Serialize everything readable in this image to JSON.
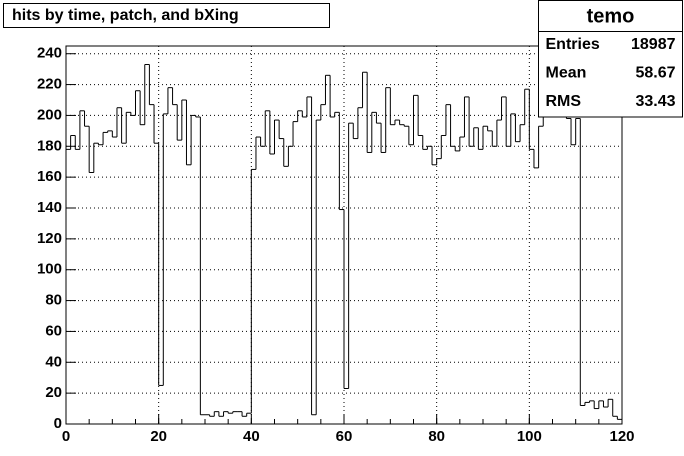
{
  "chart_data": {
    "type": "histogram",
    "title": "hits by time, patch, and bXing",
    "bins": [
      0,
      1,
      2,
      3,
      4,
      5,
      6,
      7,
      8,
      9,
      10,
      11,
      12,
      13,
      14,
      15,
      16,
      17,
      18,
      19,
      20,
      21,
      22,
      23,
      24,
      25,
      26,
      27,
      28,
      29,
      30,
      31,
      32,
      33,
      34,
      35,
      36,
      37,
      38,
      39,
      40,
      41,
      42,
      43,
      44,
      45,
      46,
      47,
      48,
      49,
      50,
      51,
      52,
      53,
      54,
      55,
      56,
      57,
      58,
      59,
      60,
      61,
      62,
      63,
      64,
      65,
      66,
      67,
      68,
      69,
      70,
      71,
      72,
      73,
      74,
      75,
      76,
      77,
      78,
      79,
      80,
      81,
      82,
      83,
      84,
      85,
      86,
      87,
      88,
      89,
      90,
      91,
      92,
      93,
      94,
      95,
      96,
      97,
      98,
      99,
      100,
      101,
      102,
      103,
      104,
      105,
      106,
      107,
      108,
      109,
      110,
      111,
      112,
      113,
      114,
      115,
      116,
      117,
      118,
      119,
      120
    ],
    "values": [
      178,
      187,
      178,
      203,
      193,
      163,
      182,
      181,
      189,
      190,
      186,
      205,
      182,
      202,
      200,
      216,
      194,
      233,
      207,
      182,
      25,
      201,
      218,
      207,
      184,
      210,
      168,
      200,
      199,
      6,
      6,
      5,
      8,
      5,
      8,
      7,
      8,
      8,
      5,
      7,
      165,
      186,
      180,
      203,
      175,
      197,
      185,
      167,
      180,
      196,
      203,
      199,
      212,
      6,
      197,
      207,
      226,
      199,
      202,
      139,
      23,
      195,
      185,
      205,
      228,
      176,
      202,
      195,
      176,
      218,
      194,
      197,
      194,
      193,
      181,
      213,
      187,
      178,
      180,
      168,
      172,
      187,
      207,
      180,
      177,
      186,
      212,
      180,
      192,
      178,
      193,
      190,
      180,
      197,
      212,
      180,
      201,
      183,
      194,
      217,
      178,
      166,
      193,
      222,
      207,
      199,
      205,
      207,
      198,
      181,
      198,
      12,
      14,
      15,
      10,
      15,
      11,
      16,
      5,
      3
    ],
    "color": "#000000",
    "xlim": [
      0,
      120
    ],
    "xticks": [
      0,
      20,
      40,
      60,
      80,
      100,
      120
    ],
    "ylim": [
      0,
      245
    ],
    "yticks": [
      0,
      20,
      40,
      60,
      80,
      100,
      120,
      140,
      160,
      180,
      200,
      220,
      240
    ],
    "grid": true,
    "stats": {
      "title": "temo",
      "rows": [
        {
          "name": "Entries",
          "value": 18987
        },
        {
          "name": "Mean",
          "value": 58.67
        },
        {
          "name": "RMS",
          "value": 33.43
        }
      ]
    }
  }
}
